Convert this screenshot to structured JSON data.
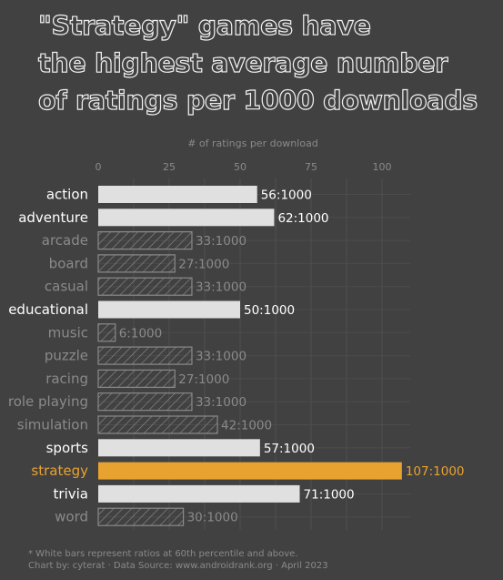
{
  "title_lines": [
    "\"Strategy\" games have",
    "the highest average number",
    "of ratings per 1000 downloads"
  ],
  "footnote": {
    "note": "* White bars represent ratios at 60th percentile and above.",
    "credit": "Chart by: cyterat · Data Source: www.androidrank.org · April 2023"
  },
  "colors": {
    "background": "#414141",
    "highlight": "#e8a22f",
    "top_bar": "#e0e0e0",
    "hatched_bar": "#8a8a8a",
    "muted_text": "#8a8a8a",
    "grid": "#4c4c4c"
  },
  "chart_data": {
    "type": "bar",
    "orientation": "horizontal",
    "xlabel": "# of ratings per download",
    "xticks": [
      0,
      25,
      50,
      75,
      100
    ],
    "xlim": [
      0,
      110
    ],
    "categories": [
      "action",
      "adventure",
      "arcade",
      "board",
      "casual",
      "educational",
      "music",
      "puzzle",
      "racing",
      "role playing",
      "simulation",
      "sports",
      "strategy",
      "trivia",
      "word"
    ],
    "values": [
      56,
      62,
      33,
      27,
      33,
      50,
      6,
      33,
      27,
      33,
      42,
      57,
      107,
      71,
      30
    ],
    "labels": [
      "56:1000",
      "62:1000",
      "33:1000",
      "27:1000",
      "33:1000",
      "50:1000",
      "6:1000",
      "33:1000",
      "27:1000",
      "33:1000",
      "42:1000",
      "57:1000",
      "107:1000",
      "71:1000",
      "30:1000"
    ],
    "styles": [
      "top",
      "top",
      "hatched",
      "hatched",
      "hatched",
      "top",
      "hatched",
      "hatched",
      "hatched",
      "hatched",
      "hatched",
      "top",
      "highlight",
      "top",
      "hatched"
    ],
    "grid": true
  }
}
